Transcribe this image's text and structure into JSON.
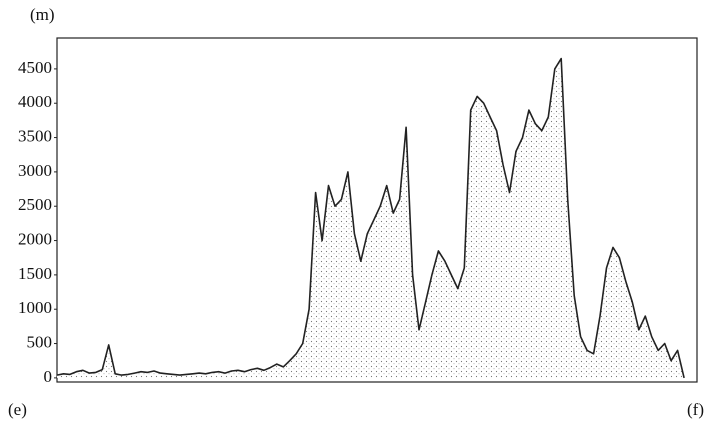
{
  "chart_data": {
    "type": "area",
    "y_label": "(m)",
    "categories": [
      "(e)",
      null,
      null,
      null,
      null,
      null,
      null,
      null,
      null,
      null,
      null,
      null,
      null,
      null,
      null,
      null,
      null,
      null,
      null,
      null,
      null,
      null,
      null,
      null,
      null,
      null,
      null,
      null,
      null,
      null,
      null,
      null,
      null,
      null,
      null,
      null,
      null,
      null,
      null,
      null,
      null,
      null,
      null,
      null,
      null,
      null,
      null,
      null,
      null,
      null,
      null,
      null,
      null,
      null,
      null,
      null,
      null,
      null,
      null,
      null,
      null,
      null,
      null,
      null,
      null,
      null,
      null,
      null,
      null,
      null,
      null,
      null,
      null,
      null,
      null,
      null,
      null,
      null,
      null,
      null,
      null,
      null,
      null,
      null,
      null,
      null,
      null,
      null,
      null,
      null,
      null,
      null,
      null,
      null,
      null,
      null,
      null,
      null,
      null,
      "(f)"
    ],
    "values": [
      40,
      60,
      50,
      90,
      110,
      70,
      80,
      120,
      480,
      60,
      40,
      50,
      70,
      90,
      80,
      100,
      70,
      60,
      50,
      40,
      50,
      60,
      70,
      60,
      80,
      90,
      70,
      100,
      110,
      90,
      120,
      140,
      110,
      150,
      200,
      160,
      250,
      350,
      500,
      1000,
      2700,
      2000,
      2800,
      2500,
      2600,
      3000,
      2100,
      1700,
      2100,
      2300,
      2500,
      2800,
      2400,
      2600,
      3650,
      1500,
      700,
      1100,
      1500,
      1850,
      1700,
      1500,
      1300,
      1600,
      3900,
      4100,
      4000,
      3800,
      3600,
      3100,
      2700,
      3300,
      3500,
      3900,
      3700,
      3600,
      3800,
      4500,
      4650,
      2600,
      1200,
      600,
      400,
      350,
      900,
      1600,
      1900,
      1750,
      1400,
      1100,
      700,
      900,
      600,
      400,
      500,
      250,
      400,
      0,
      null,
      null
    ],
    "color": "#222222",
    "ylim": [
      -60,
      4950
    ],
    "yticks": [
      0,
      500,
      1000,
      1500,
      2000,
      2500,
      3000,
      3500,
      4000,
      4500
    ]
  }
}
